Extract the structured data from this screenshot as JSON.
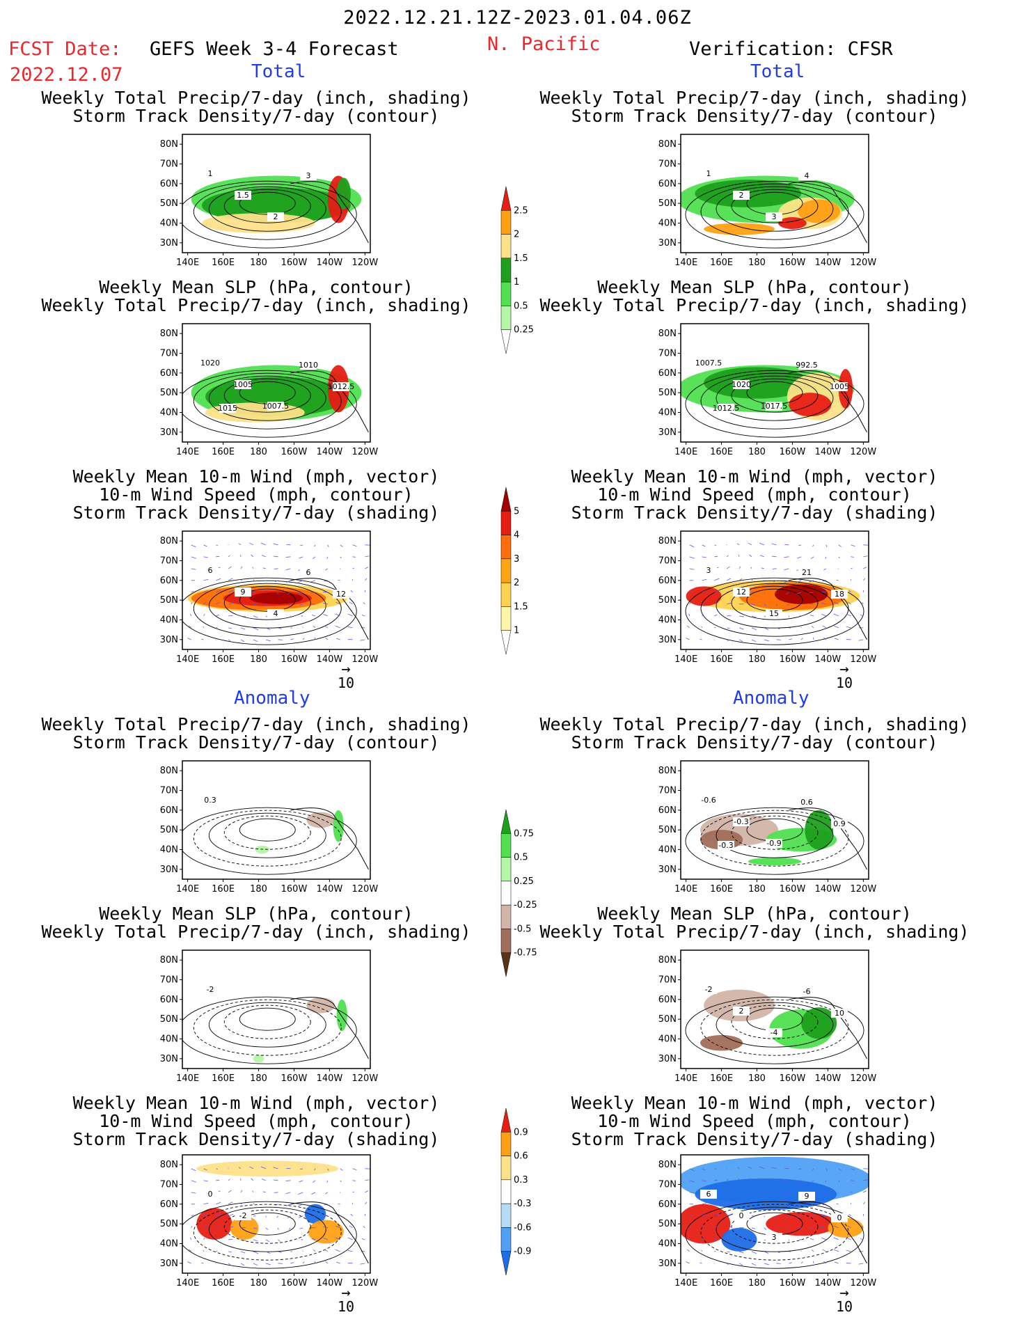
{
  "header": {
    "period": "2022.12.21.12Z-2023.01.04.06Z",
    "fcst_label": "FCST Date:",
    "fcst_date": "2022.12.07",
    "forecast_title": "GEFS Week 3-4 Forecast",
    "region": "N. Pacific",
    "verification": "Verification: CFSR"
  },
  "sections": {
    "total": "Total",
    "anomaly": "Anomaly"
  },
  "titles": {
    "precip": "Weekly Total Precip/7-day (inch, shading)",
    "storm_contour": "Storm Track Density/7-day (contour)",
    "slp": "Weekly Mean SLP (hPa, contour)",
    "wind_vec": "Weekly Mean 10-m Wind (mph, vector)",
    "wind_speed": "10-m Wind Speed (mph, contour)",
    "storm_shading": "Storm Track Density/7-day (shading)"
  },
  "vector_ref": "10",
  "colors": {
    "precip_total": [
      "#ffffff",
      "#b4f5a8",
      "#50e050",
      "#1ea01e",
      "#fde28a",
      "#ffa014",
      "#e61e14"
    ],
    "storm_total": [
      "#ffffff",
      "#fdf5a8",
      "#ffd250",
      "#ffa514",
      "#ff6e0a",
      "#e61e14",
      "#a50000"
    ],
    "precip_anom": [
      "#5a3218",
      "#a06e5a",
      "#d2b4a8",
      "#ffffff",
      "#b4f5a8",
      "#50e050",
      "#1ea01e"
    ],
    "storm_anom": [
      "#1e6ee6",
      "#50a0f5",
      "#b4dcf5",
      "#ffffff",
      "#fde28a",
      "#ffa014",
      "#e61e14"
    ]
  },
  "chart_data": [
    {
      "type": "heatmap",
      "panel": "fcst_total_precip_storm",
      "title": "Weekly Total Precip/7-day (inch, shading) / Storm Track Density/7-day (contour)",
      "x_ticks": [
        "140E",
        "160E",
        "180",
        "160W",
        "140W",
        "120W"
      ],
      "y_ticks": [
        "30N",
        "40N",
        "50N",
        "60N",
        "70N",
        "80N"
      ],
      "colorbar": [
        0.25,
        0.5,
        1,
        1.5,
        2,
        2.5
      ],
      "contour_labels": [
        "1",
        "1.5",
        "2",
        "3"
      ]
    },
    {
      "type": "heatmap",
      "panel": "verif_total_precip_storm",
      "title": "Weekly Total Precip/7-day (inch, shading) / Storm Track Density/7-day (contour)",
      "x_ticks": [
        "140E",
        "160E",
        "180",
        "160W",
        "140W",
        "120W"
      ],
      "y_ticks": [
        "30N",
        "40N",
        "50N",
        "60N",
        "70N",
        "80N"
      ],
      "colorbar": [
        0.25,
        0.5,
        1,
        1.5,
        2,
        2.5
      ],
      "contour_labels": [
        "1",
        "2",
        "3",
        "4"
      ]
    },
    {
      "type": "heatmap",
      "panel": "fcst_total_slp_precip",
      "title": "Weekly Mean SLP (hPa, contour) / Weekly Total Precip/7-day (inch, shading)",
      "x_ticks": [
        "140E",
        "160E",
        "180",
        "160W",
        "140W",
        "120W"
      ],
      "y_ticks": [
        "30N",
        "40N",
        "50N",
        "60N",
        "70N",
        "80N"
      ],
      "colorbar": [
        0.25,
        0.5,
        1,
        1.5,
        2,
        2.5
      ],
      "contour_labels": [
        "1020",
        "1005",
        "1007.5",
        "1010",
        "1012.5",
        "1015"
      ]
    },
    {
      "type": "heatmap",
      "panel": "verif_total_slp_precip",
      "title": "Weekly Mean SLP (hPa, contour) / Weekly Total Precip/7-day (inch, shading)",
      "x_ticks": [
        "140E",
        "160E",
        "180",
        "160W",
        "140W",
        "120W"
      ],
      "y_ticks": [
        "30N",
        "40N",
        "50N",
        "60N",
        "70N",
        "80N"
      ],
      "colorbar": [
        0.25,
        0.5,
        1,
        1.5,
        2,
        2.5
      ],
      "contour_labels": [
        "1007.5",
        "1020",
        "1017.5",
        "992.5",
        "1005",
        "1012.5"
      ]
    },
    {
      "type": "heatmap",
      "panel": "fcst_total_wind_storm",
      "title": "Weekly Mean 10-m Wind (mph, vector) / 10-m Wind Speed (mph, contour) / Storm Track Density/7-day (shading)",
      "x_ticks": [
        "140E",
        "160E",
        "180",
        "160W",
        "140W",
        "120W"
      ],
      "y_ticks": [
        "30N",
        "40N",
        "50N",
        "60N",
        "70N",
        "80N"
      ],
      "colorbar": [
        1,
        1.5,
        2,
        3,
        4,
        5
      ],
      "contour_labels": [
        "6",
        "9",
        "4",
        "6",
        "12"
      ],
      "vector_reference": 10
    },
    {
      "type": "heatmap",
      "panel": "verif_total_wind_storm",
      "title": "Weekly Mean 10-m Wind (mph, vector) / 10-m Wind Speed (mph, contour) / Storm Track Density/7-day (shading)",
      "x_ticks": [
        "140E",
        "160E",
        "180",
        "160W",
        "140W",
        "120W"
      ],
      "y_ticks": [
        "30N",
        "40N",
        "50N",
        "60N",
        "70N",
        "80N"
      ],
      "colorbar": [
        1,
        1.5,
        2,
        3,
        4,
        5
      ],
      "contour_labels": [
        "3",
        "12",
        "15",
        "21",
        "18"
      ],
      "vector_reference": 10
    },
    {
      "type": "heatmap",
      "panel": "fcst_anom_precip_storm",
      "title": "Weekly Total Precip/7-day (inch, shading) / Storm Track Density/7-day (contour)",
      "x_ticks": [
        "140E",
        "160E",
        "180",
        "160W",
        "140W",
        "120W"
      ],
      "y_ticks": [
        "30N",
        "40N",
        "50N",
        "60N",
        "70N",
        "80N"
      ],
      "colorbar": [
        -0.75,
        -0.5,
        -0.25,
        0.25,
        0.5,
        0.75
      ],
      "contour_labels": [
        "0.3"
      ]
    },
    {
      "type": "heatmap",
      "panel": "verif_anom_precip_storm",
      "title": "Weekly Total Precip/7-day (inch, shading) / Storm Track Density/7-day (contour)",
      "x_ticks": [
        "140E",
        "160E",
        "180",
        "160W",
        "140W",
        "120W"
      ],
      "y_ticks": [
        "30N",
        "40N",
        "50N",
        "60N",
        "70N",
        "80N"
      ],
      "colorbar": [
        -0.75,
        -0.5,
        -0.25,
        0.25,
        0.5,
        0.75
      ],
      "contour_labels": [
        "-0.6",
        "-0.3",
        "-0.9",
        "0.6",
        "0.9",
        "-0.3"
      ]
    },
    {
      "type": "heatmap",
      "panel": "fcst_anom_slp_precip",
      "title": "Weekly Mean SLP (hPa, contour) / Weekly Total Precip/7-day (inch, shading)",
      "x_ticks": [
        "140E",
        "160E",
        "180",
        "160W",
        "140W",
        "120W"
      ],
      "y_ticks": [
        "30N",
        "40N",
        "50N",
        "60N",
        "70N",
        "80N"
      ],
      "colorbar": [
        -0.75,
        -0.5,
        -0.25,
        0.25,
        0.5,
        0.75
      ],
      "contour_labels": [
        "-2"
      ]
    },
    {
      "type": "heatmap",
      "panel": "verif_anom_slp_precip",
      "title": "Weekly Mean SLP (hPa, contour) / Weekly Total Precip/7-day (inch, shading)",
      "x_ticks": [
        "140E",
        "160E",
        "180",
        "160W",
        "140W",
        "120W"
      ],
      "y_ticks": [
        "30N",
        "40N",
        "50N",
        "60N",
        "70N",
        "80N"
      ],
      "colorbar": [
        -0.75,
        -0.5,
        -0.25,
        0.25,
        0.5,
        0.75
      ],
      "contour_labels": [
        "-2",
        "2",
        "-4",
        "-6",
        "10"
      ]
    },
    {
      "type": "heatmap",
      "panel": "fcst_anom_wind_storm",
      "title": "Weekly Mean 10-m Wind (mph, vector) / 10-m Wind Speed (mph, contour) / Storm Track Density/7-day (shading)",
      "x_ticks": [
        "140E",
        "160E",
        "180",
        "160W",
        "140W",
        "120W"
      ],
      "y_ticks": [
        "30N",
        "40N",
        "50N",
        "60N",
        "70N",
        "80N"
      ],
      "colorbar": [
        -0.9,
        -0.6,
        -0.3,
        0.3,
        0.6,
        0.9
      ],
      "contour_labels": [
        "0",
        "-2"
      ],
      "vector_reference": 10
    },
    {
      "type": "heatmap",
      "panel": "verif_anom_wind_storm",
      "title": "Weekly Mean 10-m Wind (mph, vector) / 10-m Wind Speed (mph, contour) / Storm Track Density/7-day (shading)",
      "x_ticks": [
        "140E",
        "160E",
        "180",
        "160W",
        "140W",
        "120W"
      ],
      "y_ticks": [
        "30N",
        "40N",
        "50N",
        "60N",
        "70N",
        "80N"
      ],
      "colorbar": [
        -0.9,
        -0.6,
        -0.3,
        0.3,
        0.6,
        0.9
      ],
      "contour_labels": [
        "6",
        "0",
        "3",
        "9",
        "0"
      ],
      "vector_reference": 10
    }
  ]
}
